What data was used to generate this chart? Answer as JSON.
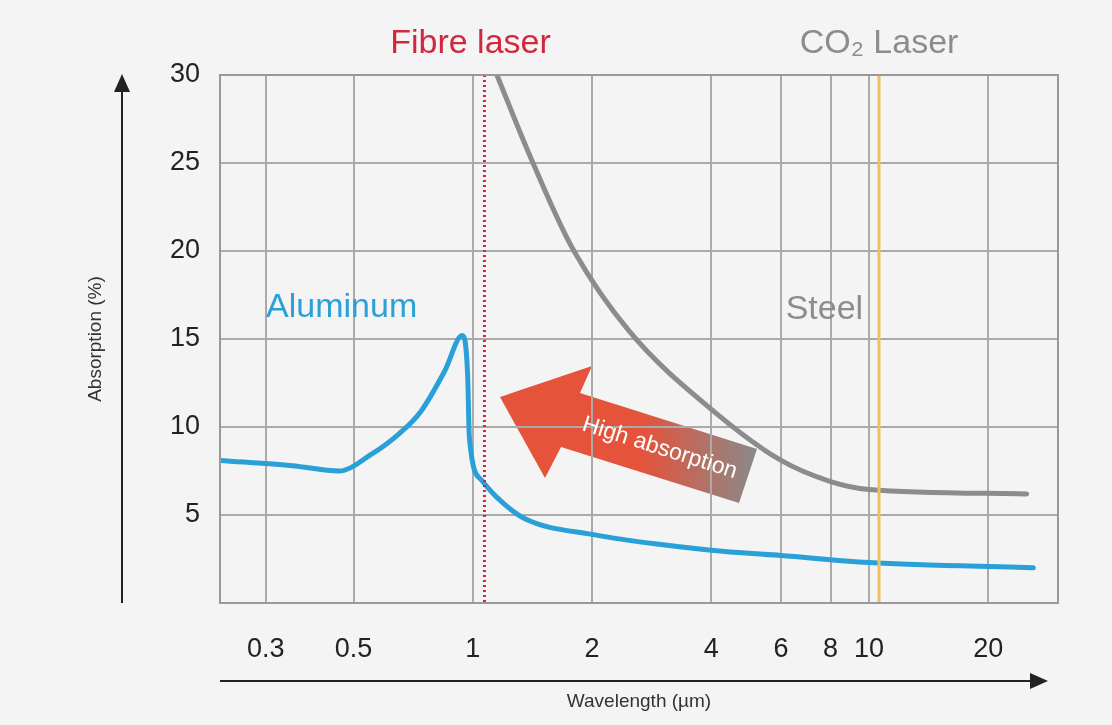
{
  "chart_data": {
    "type": "line",
    "xlabel": "Wavelength (µm)",
    "ylabel": "Absorption (%)",
    "log": "x",
    "xlim": [
      0.23,
      30
    ],
    "xticks": [
      0.3,
      0.5,
      1,
      2,
      4,
      6,
      8,
      10,
      20
    ],
    "ylim": [
      0,
      30
    ],
    "yticks": [
      5,
      10,
      15,
      20,
      25,
      30
    ],
    "grid": true,
    "legend": false,
    "marker": "none",
    "line_style": "solid",
    "series": [
      {
        "name": "Aluminum",
        "color": "#2aa0d8",
        "x": [
          0.23,
          0.35,
          0.46,
          0.55,
          0.65,
          0.74,
          0.85,
          0.94,
          0.97,
          0.98,
          1.05,
          1.15,
          1.35,
          2,
          4,
          6,
          10,
          26
        ],
        "values": [
          8.1,
          7.8,
          7.5,
          8.4,
          9.6,
          10.9,
          13.2,
          15.2,
          13,
          9.4,
          7,
          6,
          4.8,
          3.9,
          3,
          2.7,
          2.3,
          2
        ]
      },
      {
        "name": "Steel",
        "color": "#8c8c8c",
        "x": [
          1.15,
          1.4,
          1.77,
          2.47,
          4.1,
          6,
          8,
          10,
          25
        ],
        "values": [
          30,
          25.3,
          20.3,
          15.5,
          10.8,
          8.1,
          6.9,
          6.45,
          6.2
        ]
      }
    ],
    "ref_lines": [
      {
        "axis": "x",
        "value": 1.07,
        "label": "Fibre laser",
        "color": "#d0283c",
        "line_style": "dotted"
      },
      {
        "axis": "x",
        "value": 10.6,
        "label": "CO₂ Laser",
        "color": "#f0c060",
        "line_style": "solid"
      }
    ],
    "annotations": [
      "High absorption"
    ]
  }
}
